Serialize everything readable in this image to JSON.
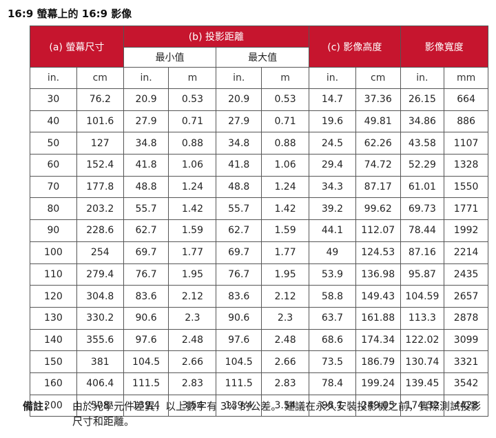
{
  "title": "16:9 螢幕上的 16:9 影像",
  "headers": {
    "screen_size": "(a) 螢幕尺寸",
    "projection_distance": "(b) 投影距離",
    "min": "最小值",
    "max": "最大值",
    "image_height": "(c) 影像高度",
    "image_width": "影像寬度"
  },
  "units": [
    "in.",
    "cm",
    "in.",
    "m",
    "in.",
    "m",
    "in.",
    "cm",
    "in.",
    "mm"
  ],
  "rows": [
    [
      "30",
      "76.2",
      "20.9",
      "0.53",
      "20.9",
      "0.53",
      "14.7",
      "37.36",
      "26.15",
      "664"
    ],
    [
      "40",
      "101.6",
      "27.9",
      "0.71",
      "27.9",
      "0.71",
      "19.6",
      "49.81",
      "34.86",
      "886"
    ],
    [
      "50",
      "127",
      "34.8",
      "0.88",
      "34.8",
      "0.88",
      "24.5",
      "62.26",
      "43.58",
      "1107"
    ],
    [
      "60",
      "152.4",
      "41.8",
      "1.06",
      "41.8",
      "1.06",
      "29.4",
      "74.72",
      "52.29",
      "1328"
    ],
    [
      "70",
      "177.8",
      "48.8",
      "1.24",
      "48.8",
      "1.24",
      "34.3",
      "87.17",
      "61.01",
      "1550"
    ],
    [
      "80",
      "203.2",
      "55.7",
      "1.42",
      "55.7",
      "1.42",
      "39.2",
      "99.62",
      "69.73",
      "1771"
    ],
    [
      "90",
      "228.6",
      "62.7",
      "1.59",
      "62.7",
      "1.59",
      "44.1",
      "112.07",
      "78.44",
      "1992"
    ],
    [
      "100",
      "254",
      "69.7",
      "1.77",
      "69.7",
      "1.77",
      "49",
      "124.53",
      "87.16",
      "2214"
    ],
    [
      "110",
      "279.4",
      "76.7",
      "1.95",
      "76.7",
      "1.95",
      "53.9",
      "136.98",
      "95.87",
      "2435"
    ],
    [
      "120",
      "304.8",
      "83.6",
      "2.12",
      "83.6",
      "2.12",
      "58.8",
      "149.43",
      "104.59",
      "2657"
    ],
    [
      "130",
      "330.2",
      "90.6",
      "2.3",
      "90.6",
      "2.3",
      "63.7",
      "161.88",
      "113.3",
      "2878"
    ],
    [
      "140",
      "355.6",
      "97.6",
      "2.48",
      "97.6",
      "2.48",
      "68.6",
      "174.34",
      "122.02",
      "3099"
    ],
    [
      "150",
      "381",
      "104.5",
      "2.66",
      "104.5",
      "2.66",
      "73.5",
      "186.79",
      "130.74",
      "3321"
    ],
    [
      "160",
      "406.4",
      "111.5",
      "2.83",
      "111.5",
      "2.83",
      "78.4",
      "199.24",
      "139.45",
      "3542"
    ],
    [
      "200",
      "508",
      "139.4",
      "3.54",
      "139.4",
      "3.54",
      "98.1",
      "249.05",
      "174.32",
      "4428"
    ]
  ],
  "note": {
    "label": "備註：",
    "text": "由於光學元件差異，以上數字有 3% 的公差。 建議在永久安裝投影機之前，實際測試投影尺寸和距離。"
  },
  "colors": {
    "header_red": "#c6152e"
  }
}
